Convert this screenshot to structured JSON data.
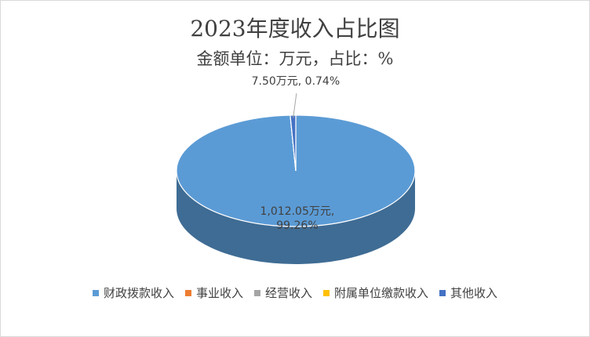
{
  "chart_data": {
    "type": "pie3d",
    "title": "2023年度收入占比图",
    "subtitle": "金额单位：万元，占比：%",
    "categories": [
      "财政拨款收入",
      "事业收入",
      "经营收入",
      "附属单位缴款收入",
      "其他收入"
    ],
    "values": [
      99.26,
      0,
      0,
      0,
      0.74
    ],
    "value_labels": [
      "1,012.05万元, 99.26%",
      null,
      null,
      null,
      "7.50万元, 0.74%"
    ],
    "colors": [
      "#5b9bd5",
      "#ed7d31",
      "#a5a5a5",
      "#ffc000",
      "#4472c4"
    ],
    "legend": "bottom"
  }
}
